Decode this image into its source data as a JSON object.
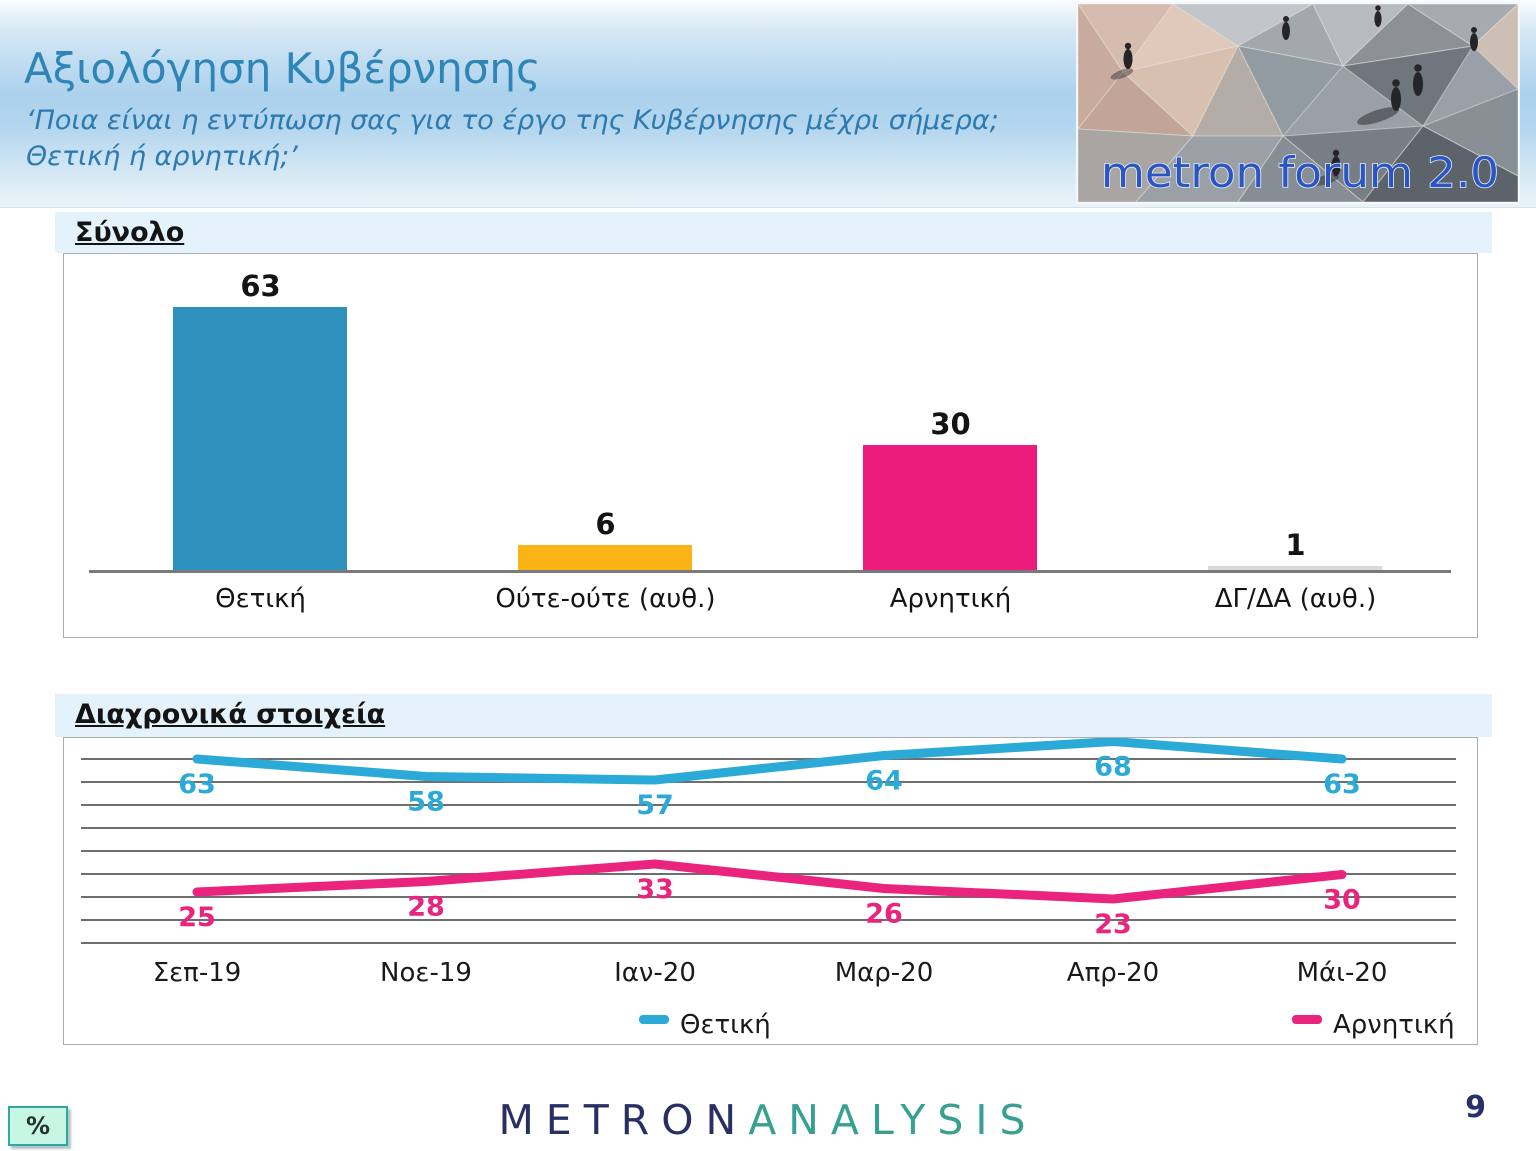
{
  "header": {
    "title": "Αξιολόγηση Κυβέρνησης",
    "subtitle_line1": "‘Ποια είναι η εντύπωση σας για το έργο της Κυβέρνησης μέχρι σήμερα;",
    "subtitle_line2": "Θετική ή αρνητική;’",
    "photo_caption": "metron forum 2.0"
  },
  "chart_data": [
    {
      "type": "bar",
      "title": "Σύνολο",
      "categories": [
        "Θετική",
        "Ούτε-ούτε (αυθ.)",
        "Αρνητική",
        "ΔΓ/ΔΑ (αυθ.)"
      ],
      "values": [
        63,
        6,
        30,
        1
      ],
      "bar_colors": [
        "#2e91be",
        "#fbb316",
        "#ec1c7c",
        "#d9d9d9"
      ],
      "ylim": [
        0,
        70
      ],
      "yaxis_labels_visible": false,
      "grid": false,
      "data_labels": true
    },
    {
      "type": "line",
      "title": "Διαχρονικά στοιχεία",
      "categories": [
        "Σεπ-19",
        "Νοε-19",
        "Ιαν-20",
        "Μαρ-20",
        "Απρ-20",
        "Μάι-20"
      ],
      "series": [
        {
          "name": "Θετική",
          "color": "#2baad7",
          "values": [
            63,
            58,
            57,
            64,
            68,
            63
          ]
        },
        {
          "name": "Αρνητική",
          "color": "#e9237e",
          "values": [
            25,
            28,
            33,
            26,
            23,
            30
          ]
        }
      ],
      "grid": true,
      "gridline_count": 9,
      "yaxis_labels_visible": false,
      "legend_position": "bottom",
      "data_labels": true
    }
  ],
  "footer": {
    "logo_part1": "METRON",
    "logo_part2": "ANALYSIS",
    "percent_badge": "%",
    "page_number": "9"
  },
  "colors": {
    "title_text": "#2e85b7",
    "section_band_bg": "#e4f3fb",
    "chart_box_border": "#adadad",
    "gridline": "#6e6e6e",
    "axis_line": "#7a7a7a",
    "logo_metron": "#2a2f63",
    "logo_analysis": "#38a08f",
    "percent_badge_bg": "#c7f6e5",
    "percent_badge_border": "#2ea8a1"
  }
}
